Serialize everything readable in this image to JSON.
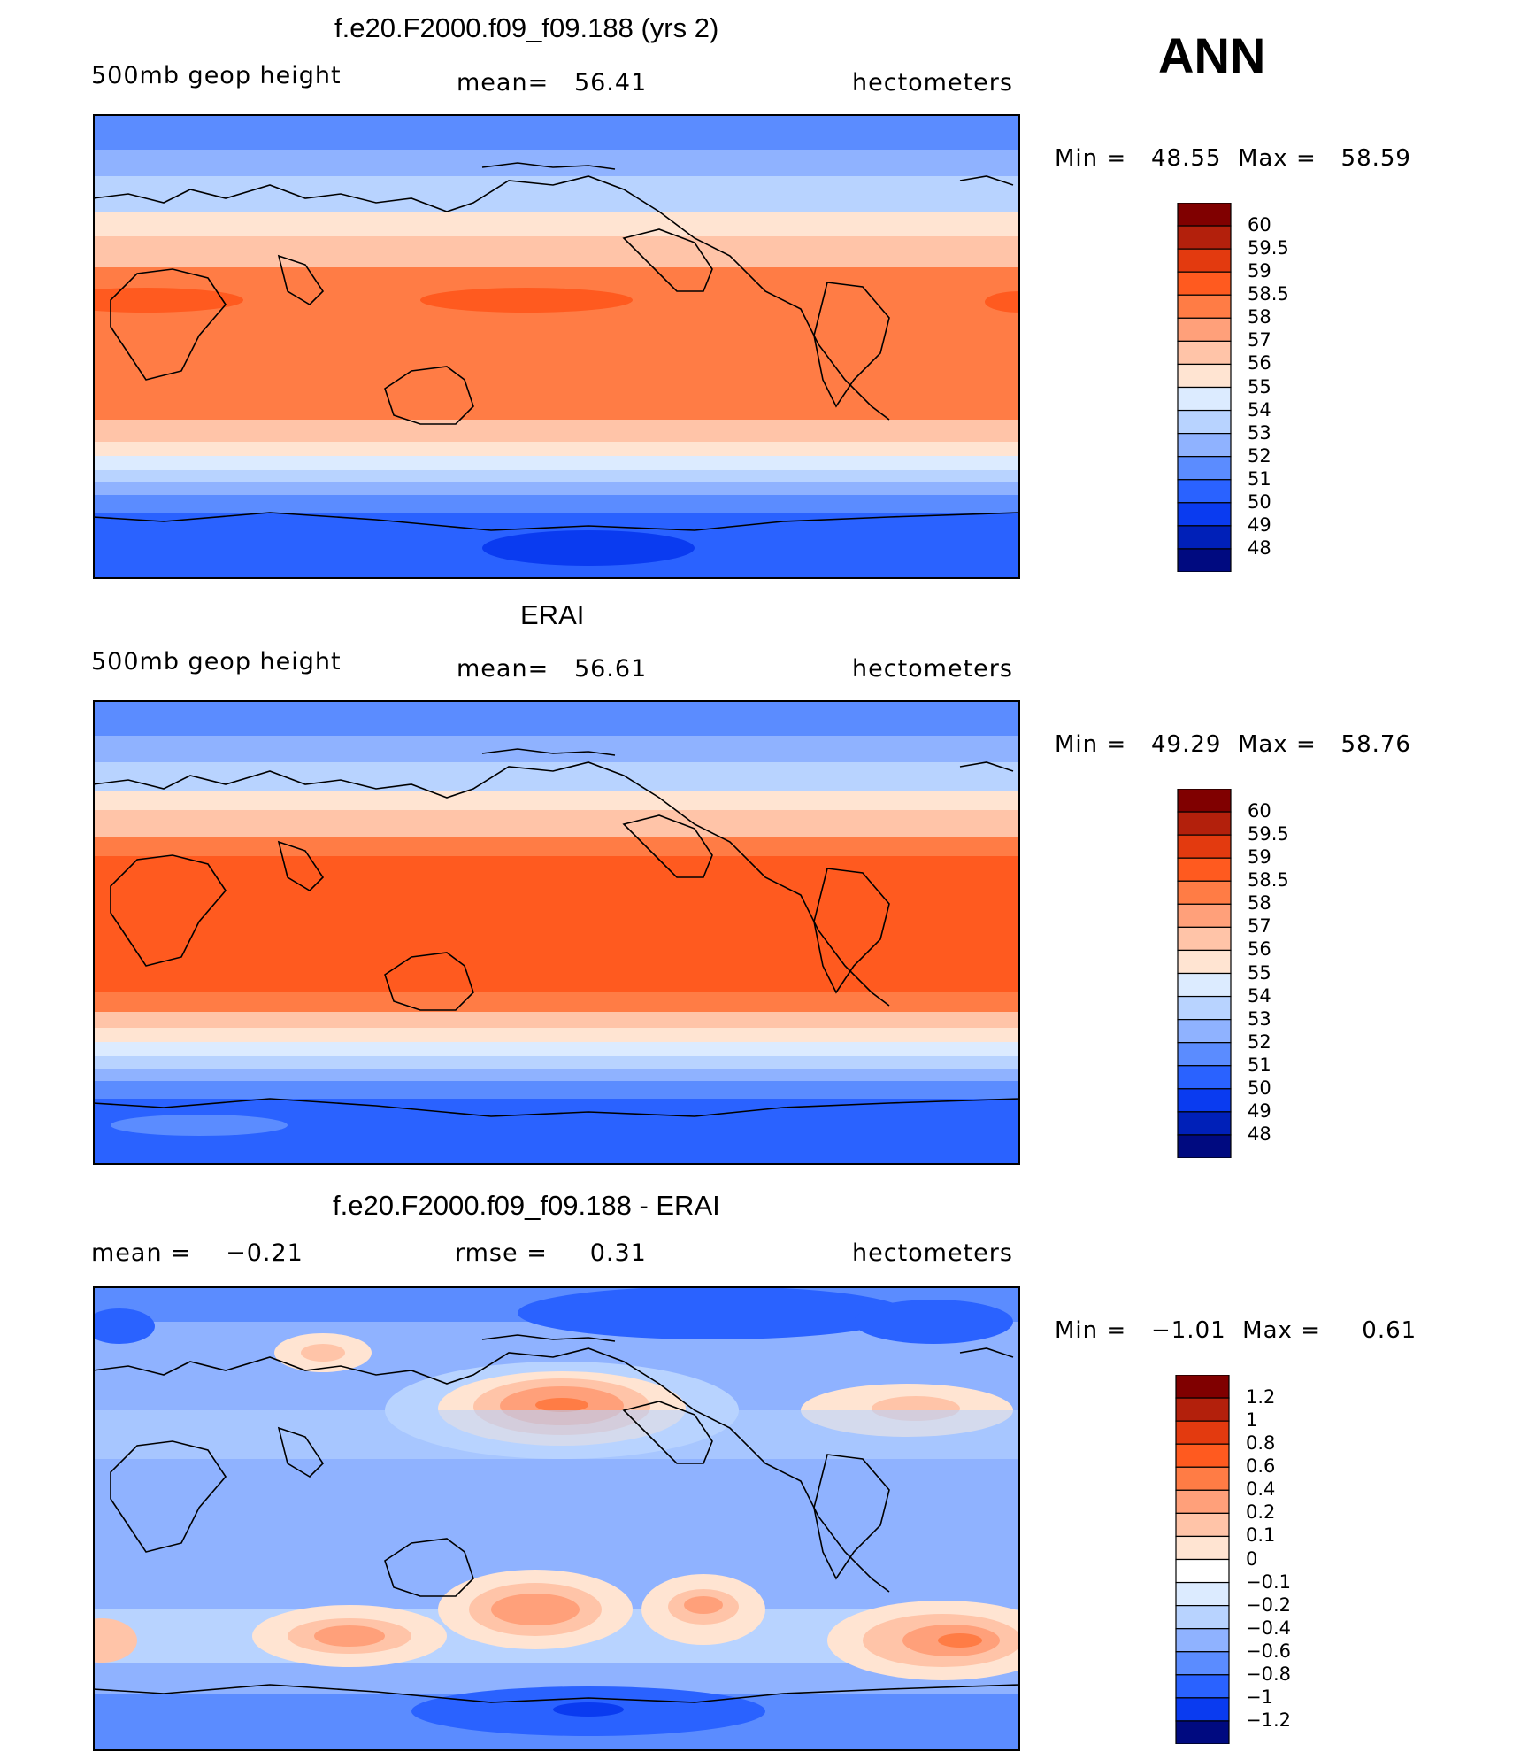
{
  "season": "ANN",
  "units_label": "hectometers",
  "panels": [
    {
      "title": "f.e20.F2000.f09_f09.188 (yrs 2)",
      "left_label": "500mb geop height",
      "mid_label": "mean=   56.41",
      "right_label": "hectometers",
      "minmax": "Min =   48.55  Max =   58.59",
      "colorbar": [
        "60",
        "59.5",
        "59",
        "58.5",
        "58",
        "57",
        "56",
        "55",
        "54",
        "53",
        "52",
        "51",
        "50",
        "49",
        "48"
      ]
    },
    {
      "title": "ERAI",
      "left_label": "500mb geop height",
      "mid_label": "mean=   56.61",
      "right_label": "hectometers",
      "minmax": "Min =   49.29  Max =   58.76",
      "colorbar": [
        "60",
        "59.5",
        "59",
        "58.5",
        "58",
        "57",
        "56",
        "55",
        "54",
        "53",
        "52",
        "51",
        "50",
        "49",
        "48"
      ]
    },
    {
      "title": "f.e20.F2000.f09_f09.188 - ERAI",
      "left_label": "mean =    −0.21",
      "mid_label": "rmse =     0.31",
      "right_label": "hectometers",
      "minmax": "Min =   −1.01  Max =     0.61",
      "colorbar": [
        "1.2",
        "1",
        "0.8",
        "0.6",
        "0.4",
        "0.2",
        "0.1",
        "0",
        "−0.1",
        "−0.2",
        "−0.4",
        "−0.6",
        "−0.8",
        "−1",
        "−1.2"
      ]
    }
  ],
  "colors": {
    "abs_scale": [
      "#800000",
      "#b3200c",
      "#e33a0f",
      "#ff5a1f",
      "#ff7c45",
      "#ffa07a",
      "#ffc4a8",
      "#ffe4d2",
      "#dcebff",
      "#b8d3ff",
      "#8fb2ff",
      "#5b8cff",
      "#2a62ff",
      "#0a3bf0",
      "#0020b8",
      "#000a80"
    ],
    "diff_scale": [
      "#800000",
      "#b3200c",
      "#e33a0f",
      "#ff5a1f",
      "#ff7c45",
      "#ffa07a",
      "#ffc4a8",
      "#ffe4d2",
      "#ffffff",
      "#dcebff",
      "#b8d3ff",
      "#8fb2ff",
      "#5b8cff",
      "#2a62ff",
      "#0a3bf0",
      "#000a80"
    ]
  }
}
